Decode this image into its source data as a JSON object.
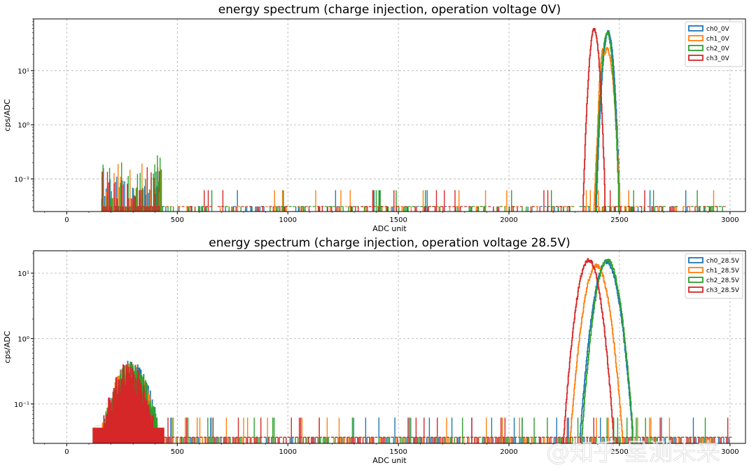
{
  "colors": {
    "ch0": "#1f77b4",
    "ch1": "#ff7f0e",
    "ch2": "#2ca02c",
    "ch3": "#d62728"
  },
  "watermark": "@知乎 星测未来",
  "chart_data": [
    {
      "type": "line",
      "title": "energy spectrum (charge injection, operation voltage 0V)",
      "xlabel": "ADC unit",
      "ylabel": "cps/ADC",
      "xscale": "linear",
      "yscale": "log",
      "xlim": [
        -150,
        3070
      ],
      "ylim": [
        0.025,
        90
      ],
      "xticks": [
        0,
        500,
        1000,
        1500,
        2000,
        2500,
        3000
      ],
      "yticks": [
        {
          "value": 0.1,
          "label": "10⁻¹"
        },
        {
          "value": 1,
          "label": "10⁰"
        },
        {
          "value": 10,
          "label": "10¹"
        }
      ],
      "grid": true,
      "legend_position": "top-right",
      "baseline": 0.031,
      "series": [
        {
          "name": "ch0_0V",
          "color": "#1f77b4",
          "peak": {
            "center": 2448,
            "height": 52,
            "sigma": 14
          },
          "noise": {
            "start": 160,
            "end": 3000,
            "low_end": 430,
            "low_max": 0.25,
            "density": 0.16,
            "seed": 11
          }
        },
        {
          "name": "ch1_0V",
          "color": "#ff7f0e",
          "peak": {
            "center": 2443,
            "height": 25,
            "sigma": 16
          },
          "second_peak": {
            "center": 2424,
            "height": 24,
            "sigma": 9
          },
          "noise": {
            "start": 160,
            "end": 2990,
            "low_end": 430,
            "low_max": 0.23,
            "density": 0.14,
            "seed": 29
          }
        },
        {
          "name": "ch2_0V",
          "color": "#2ca02c",
          "peak": {
            "center": 2444,
            "height": 50,
            "sigma": 14
          },
          "noise": {
            "start": 158,
            "end": 2990,
            "low_end": 440,
            "low_max": 0.34,
            "density": 0.2,
            "seed": 47
          }
        },
        {
          "name": "ch3_0V",
          "color": "#d62728",
          "peak": {
            "center": 2385,
            "height": 58,
            "sigma": 13
          },
          "noise": {
            "start": 160,
            "end": 2990,
            "low_end": 420,
            "low_max": 0.26,
            "density": 0.16,
            "seed": 83
          }
        }
      ]
    },
    {
      "type": "line",
      "title": "energy spectrum (charge injection, operation voltage 28.5V)",
      "xlabel": "ADC unit",
      "ylabel": "cps/ADC",
      "xscale": "linear",
      "yscale": "log",
      "xlim": [
        -150,
        3070
      ],
      "ylim": [
        0.025,
        22
      ],
      "xticks": [
        0,
        500,
        1000,
        1500,
        2000,
        2500,
        3000
      ],
      "yticks": [
        {
          "value": 0.1,
          "label": "10⁻¹"
        },
        {
          "value": 1,
          "label": "10⁰"
        },
        {
          "value": 10,
          "label": "10¹"
        }
      ],
      "grid": true,
      "legend_position": "top-right",
      "baseline": 0.031,
      "series": [
        {
          "name": "ch0_28.5V",
          "color": "#1f77b4",
          "peak": {
            "center": 2440,
            "height": 15,
            "sigma": 34
          },
          "low_bump": {
            "center": 290,
            "height": 0.35,
            "width": 85,
            "start": 120,
            "end": 440
          },
          "noise": {
            "start": 440,
            "end": 3000,
            "density": 0.3,
            "seed": 101
          }
        },
        {
          "name": "ch1_28.5V",
          "color": "#ff7f0e",
          "peak": {
            "center": 2395,
            "height": 13,
            "sigma": 34
          },
          "low_bump": {
            "center": 285,
            "height": 0.33,
            "width": 85,
            "start": 120,
            "end": 440
          },
          "noise": {
            "start": 440,
            "end": 3000,
            "density": 0.28,
            "seed": 131
          }
        },
        {
          "name": "ch2_28.5V",
          "color": "#2ca02c",
          "peak": {
            "center": 2445,
            "height": 16,
            "sigma": 33
          },
          "low_bump": {
            "center": 290,
            "height": 0.34,
            "width": 85,
            "start": 120,
            "end": 440
          },
          "noise": {
            "start": 440,
            "end": 3000,
            "density": 0.32,
            "seed": 157
          }
        },
        {
          "name": "ch3_28.5V",
          "color": "#d62728",
          "peak": {
            "center": 2360,
            "height": 16,
            "sigma": 32
          },
          "low_bump": {
            "center": 280,
            "height": 0.33,
            "width": 82,
            "start": 120,
            "end": 440
          },
          "noise": {
            "start": 440,
            "end": 3000,
            "density": 0.34,
            "seed": 191
          }
        }
      ]
    }
  ]
}
